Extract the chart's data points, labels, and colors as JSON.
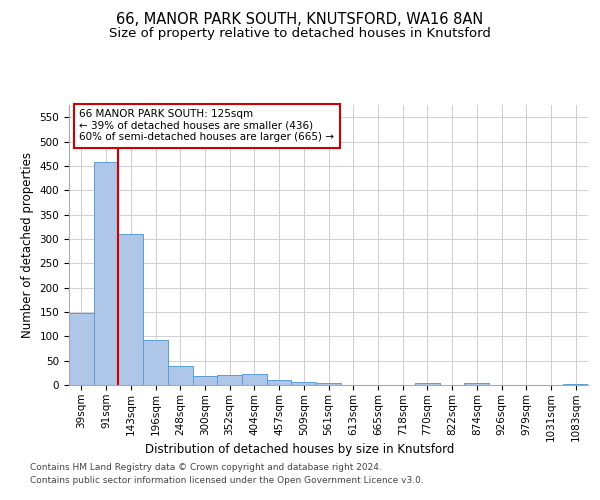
{
  "title1": "66, MANOR PARK SOUTH, KNUTSFORD, WA16 8AN",
  "title2": "Size of property relative to detached houses in Knutsford",
  "xlabel": "Distribution of detached houses by size in Knutsford",
  "ylabel": "Number of detached properties",
  "bar_color": "#aec6e8",
  "bar_edge_color": "#5a9fd4",
  "bin_labels": [
    "39sqm",
    "91sqm",
    "143sqm",
    "196sqm",
    "248sqm",
    "300sqm",
    "352sqm",
    "404sqm",
    "457sqm",
    "509sqm",
    "561sqm",
    "613sqm",
    "665sqm",
    "718sqm",
    "770sqm",
    "822sqm",
    "874sqm",
    "926sqm",
    "979sqm",
    "1031sqm",
    "1083sqm"
  ],
  "bar_values": [
    148,
    457,
    311,
    92,
    38,
    19,
    20,
    22,
    10,
    6,
    5,
    0,
    0,
    0,
    4,
    0,
    4,
    0,
    0,
    0,
    3
  ],
  "ylim": [
    0,
    575
  ],
  "yticks": [
    0,
    50,
    100,
    150,
    200,
    250,
    300,
    350,
    400,
    450,
    500,
    550
  ],
  "red_line_x": 1.5,
  "annotation_text": "66 MANOR PARK SOUTH: 125sqm\n← 39% of detached houses are smaller (436)\n60% of semi-detached houses are larger (665) →",
  "annotation_box_color": "#ffffff",
  "annotation_box_edge": "#cc0000",
  "red_line_color": "#cc0000",
  "footer_line1": "Contains HM Land Registry data © Crown copyright and database right 2024.",
  "footer_line2": "Contains public sector information licensed under the Open Government Licence v3.0.",
  "background_color": "#ffffff",
  "grid_color": "#d0d0d0",
  "title1_fontsize": 10.5,
  "title2_fontsize": 9.5,
  "axis_label_fontsize": 8.5,
  "tick_fontsize": 7.5,
  "annotation_fontsize": 7.5,
  "footer_fontsize": 6.5
}
